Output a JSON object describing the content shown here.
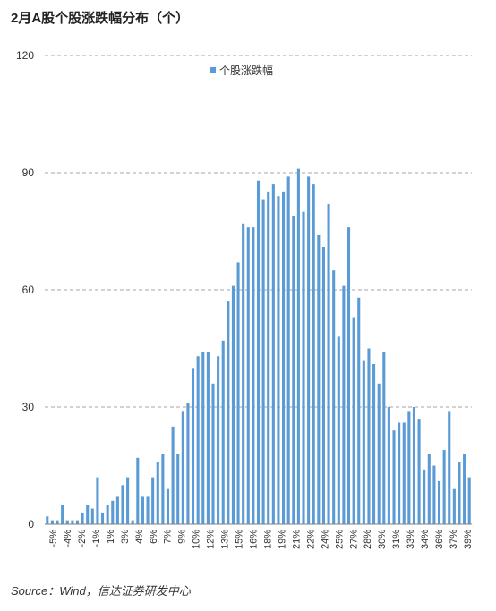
{
  "title": "2月A股个股涨跌幅分布（个）",
  "source": "Source：Wind，信达证券研发中心",
  "colors": {
    "bar": "#5b9bd5",
    "grid": "#a6a6a6",
    "axis": "#808080"
  },
  "chart_data": {
    "type": "bar",
    "title": "2月A股个股涨跌幅分布（个）",
    "legend": {
      "entry": "个股涨跌幅",
      "position": "top-center"
    },
    "ylim": [
      0,
      120
    ],
    "yticks": [
      0,
      30,
      60,
      90,
      120
    ],
    "grid": true,
    "x_tick_labels": [
      "-5%",
      "-4%",
      "-2%",
      "-1%",
      "1%",
      "3%",
      "4%",
      "6%",
      "7%",
      "9%",
      "10%",
      "12%",
      "13%",
      "15%",
      "16%",
      "18%",
      "19%",
      "21%",
      "22%",
      "24%",
      "25%",
      "27%",
      "28%",
      "30%",
      "31%",
      "33%",
      "34%",
      "36%",
      "37%",
      "39%"
    ],
    "series": [
      {
        "name": "个股涨跌幅",
        "values": [
          2,
          1,
          1,
          5,
          1,
          1,
          1,
          3,
          5,
          4,
          12,
          3,
          5,
          6,
          7,
          10,
          12,
          1,
          17,
          7,
          7,
          12,
          16,
          18,
          9,
          25,
          18,
          29,
          31,
          40,
          43,
          44,
          44,
          36,
          43,
          47,
          57,
          61,
          67,
          77,
          76,
          76,
          88,
          83,
          85,
          87,
          84,
          85,
          89,
          79,
          91,
          80,
          89,
          87,
          74,
          71,
          82,
          65,
          48,
          61,
          76,
          53,
          58,
          42,
          45,
          41,
          36,
          44,
          30,
          24,
          26,
          26,
          29,
          30,
          27,
          14,
          18,
          15,
          11,
          19,
          29,
          9,
          16,
          18,
          12
        ]
      }
    ]
  }
}
